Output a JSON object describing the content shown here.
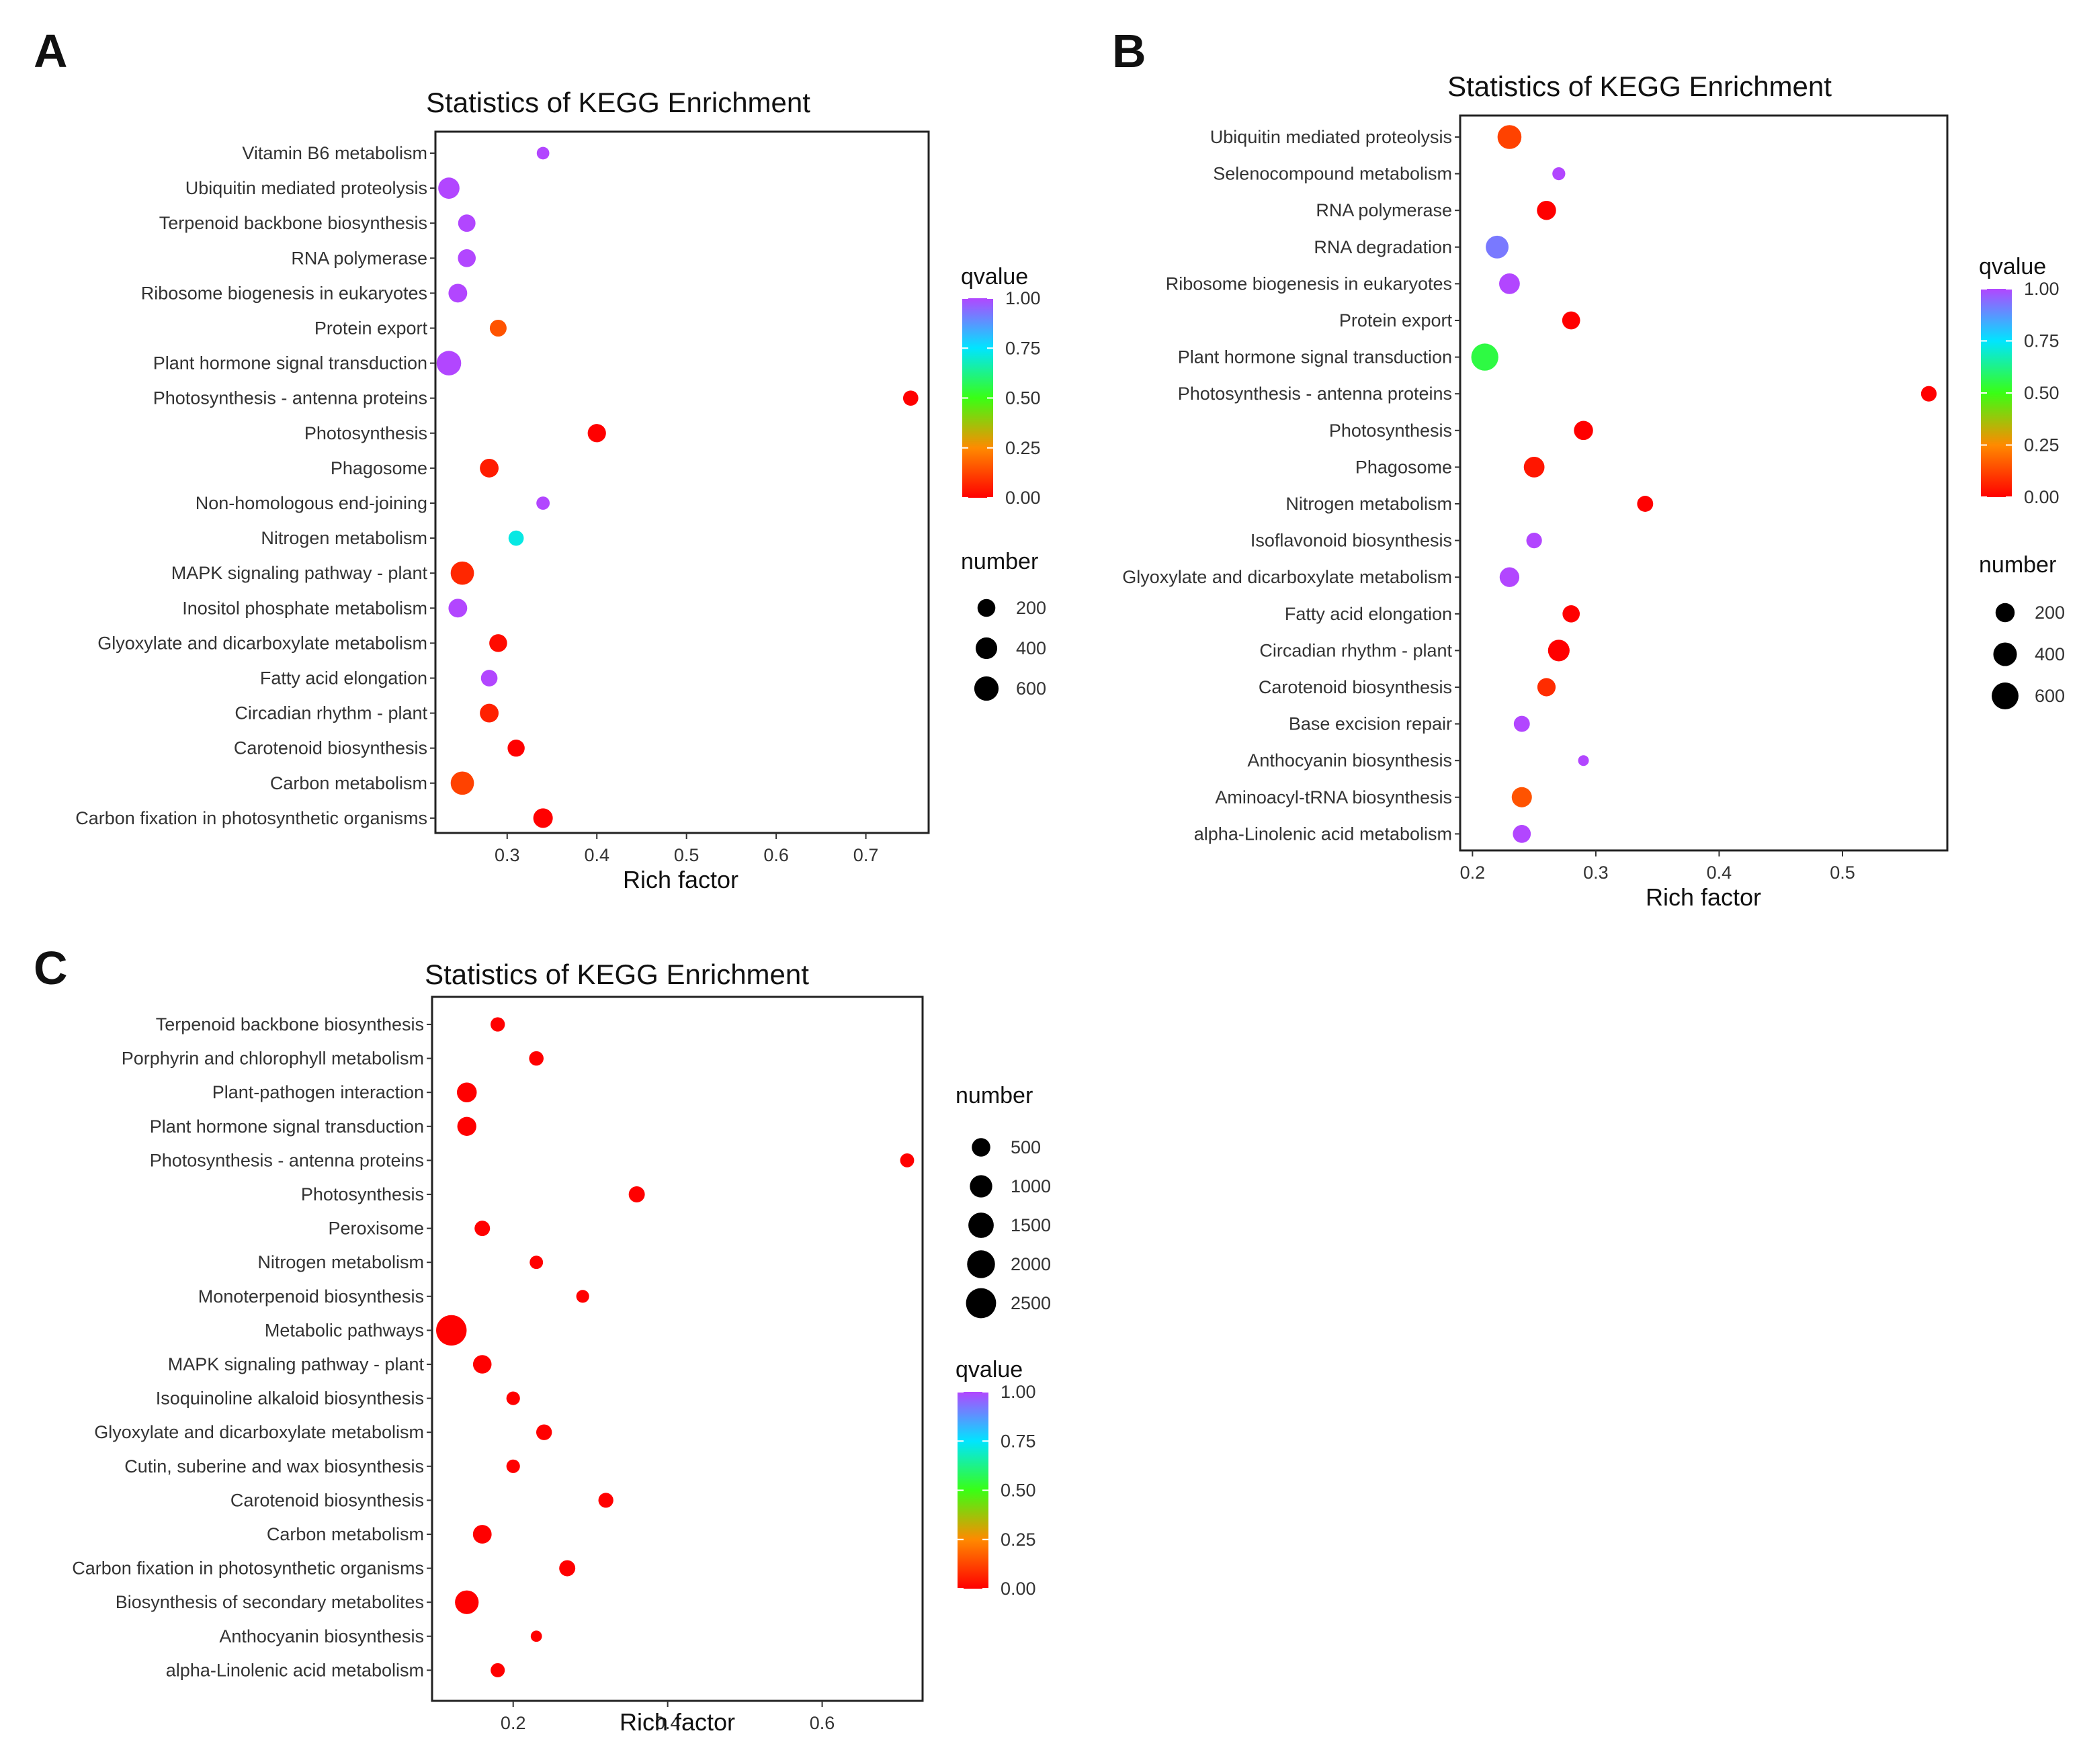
{
  "figure": {
    "panel_letters": [
      "A",
      "B",
      "C"
    ]
  },
  "chart_data": [
    {
      "type": "scatter",
      "panel": "A",
      "title": "Statistics of KEGG Enrichment",
      "xlabel": "Rich factor",
      "ylabel": "",
      "xlim": [
        0.22,
        0.77
      ],
      "xticks": [
        0.3,
        0.4,
        0.5,
        0.6,
        0.7
      ],
      "grid": false,
      "legend_placement": "right",
      "size_legend": {
        "title": "number",
        "values": [
          200,
          400,
          600
        ],
        "labels": [
          "200",
          "400",
          "600"
        ]
      },
      "color_legend": {
        "title": "qvalue",
        "range": [
          0,
          1
        ],
        "labels": [
          "1.00",
          "0.75",
          "0.50",
          "0.25",
          "0.00"
        ]
      },
      "size_scale": {
        "min": 50,
        "max": 700
      },
      "points": [
        {
          "pathway": "Vitamin B6 metabolism",
          "rich_factor": 0.34,
          "number": 60,
          "qvalue": 1.0
        },
        {
          "pathway": "Ubiquitin mediated proteolysis",
          "rich_factor": 0.235,
          "number": 380,
          "qvalue": 1.0
        },
        {
          "pathway": "Terpenoid backbone biosynthesis",
          "rich_factor": 0.255,
          "number": 180,
          "qvalue": 1.0
        },
        {
          "pathway": "RNA polymerase",
          "rich_factor": 0.255,
          "number": 200,
          "qvalue": 1.0
        },
        {
          "pathway": "Ribosome biogenesis in eukaryotes",
          "rich_factor": 0.245,
          "number": 240,
          "qvalue": 1.0
        },
        {
          "pathway": "Protein export",
          "rich_factor": 0.29,
          "number": 160,
          "qvalue": 0.15
        },
        {
          "pathway": "Plant hormone signal transduction",
          "rich_factor": 0.235,
          "number": 620,
          "qvalue": 1.0
        },
        {
          "pathway": "Photosynthesis - antenna proteins",
          "rich_factor": 0.75,
          "number": 110,
          "qvalue": 0.0
        },
        {
          "pathway": "Photosynthesis",
          "rich_factor": 0.4,
          "number": 220,
          "qvalue": 0.0
        },
        {
          "pathway": "Phagosome",
          "rich_factor": 0.28,
          "number": 240,
          "qvalue": 0.05
        },
        {
          "pathway": "Non-homologous end-joining",
          "rich_factor": 0.34,
          "number": 70,
          "qvalue": 1.0
        },
        {
          "pathway": "Nitrogen metabolism",
          "rich_factor": 0.31,
          "number": 110,
          "qvalue": 0.72
        },
        {
          "pathway": "MAPK signaling pathway - plant",
          "rich_factor": 0.25,
          "number": 520,
          "qvalue": 0.07
        },
        {
          "pathway": "Inositol phosphate metabolism",
          "rich_factor": 0.245,
          "number": 240,
          "qvalue": 1.0
        },
        {
          "pathway": "Glyoxylate and dicarboxylate metabolism",
          "rich_factor": 0.29,
          "number": 200,
          "qvalue": 0.02
        },
        {
          "pathway": "Fatty acid elongation",
          "rich_factor": 0.28,
          "number": 150,
          "qvalue": 1.0
        },
        {
          "pathway": "Circadian rhythm - plant",
          "rich_factor": 0.28,
          "number": 240,
          "qvalue": 0.06
        },
        {
          "pathway": "Carotenoid biosynthesis",
          "rich_factor": 0.31,
          "number": 170,
          "qvalue": 0.0
        },
        {
          "pathway": "Carbon metabolism",
          "rich_factor": 0.25,
          "number": 520,
          "qvalue": 0.12
        },
        {
          "pathway": "Carbon fixation in photosynthetic organisms",
          "rich_factor": 0.34,
          "number": 280,
          "qvalue": 0.0
        }
      ]
    },
    {
      "type": "scatter",
      "panel": "B",
      "title": "Statistics of KEGG Enrichment",
      "xlabel": "Rich factor",
      "ylabel": "",
      "xlim": [
        0.19,
        0.585
      ],
      "xticks": [
        0.2,
        0.3,
        0.4,
        0.5
      ],
      "grid": false,
      "legend_placement": "right",
      "size_legend": {
        "title": "number",
        "values": [
          200,
          400,
          600
        ],
        "labels": [
          "200",
          "400",
          "600"
        ]
      },
      "color_legend": {
        "title": "qvalue",
        "range": [
          0,
          1
        ],
        "labels": [
          "1.00",
          "0.75",
          "0.50",
          "0.25",
          "0.00"
        ]
      },
      "size_scale": {
        "min": 50,
        "max": 700
      },
      "points": [
        {
          "pathway": "Ubiquitin mediated proteolysis",
          "rich_factor": 0.23,
          "number": 420,
          "qvalue": 0.12
        },
        {
          "pathway": "Selenocompound metabolism",
          "rich_factor": 0.27,
          "number": 60,
          "qvalue": 1.0
        },
        {
          "pathway": "RNA polymerase",
          "rich_factor": 0.26,
          "number": 200,
          "qvalue": 0.0
        },
        {
          "pathway": "RNA degradation",
          "rich_factor": 0.22,
          "number": 360,
          "qvalue": 0.92
        },
        {
          "pathway": "Ribosome biogenesis in eukaryotes",
          "rich_factor": 0.23,
          "number": 260,
          "qvalue": 1.0
        },
        {
          "pathway": "Protein export",
          "rich_factor": 0.28,
          "number": 160,
          "qvalue": 0.0
        },
        {
          "pathway": "Plant hormone signal transduction",
          "rich_factor": 0.21,
          "number": 620,
          "qvalue": 0.55
        },
        {
          "pathway": "Photosynthesis - antenna proteins",
          "rich_factor": 0.57,
          "number": 100,
          "qvalue": 0.0
        },
        {
          "pathway": "Photosynthesis",
          "rich_factor": 0.29,
          "number": 200,
          "qvalue": 0.0
        },
        {
          "pathway": "Phagosome",
          "rich_factor": 0.25,
          "number": 260,
          "qvalue": 0.04
        },
        {
          "pathway": "Nitrogen metabolism",
          "rich_factor": 0.34,
          "number": 110,
          "qvalue": 0.0
        },
        {
          "pathway": "Isoflavonoid biosynthesis",
          "rich_factor": 0.25,
          "number": 100,
          "qvalue": 1.0
        },
        {
          "pathway": "Glyoxylate and dicarboxylate metabolism",
          "rich_factor": 0.23,
          "number": 220,
          "qvalue": 1.0
        },
        {
          "pathway": "Fatty acid elongation",
          "rich_factor": 0.28,
          "number": 140,
          "qvalue": 0.0
        },
        {
          "pathway": "Circadian rhythm - plant",
          "rich_factor": 0.27,
          "number": 300,
          "qvalue": 0.0
        },
        {
          "pathway": "Carotenoid biosynthesis",
          "rich_factor": 0.26,
          "number": 170,
          "qvalue": 0.08
        },
        {
          "pathway": "Base excision repair",
          "rich_factor": 0.24,
          "number": 110,
          "qvalue": 1.0
        },
        {
          "pathway": "Anthocyanin biosynthesis",
          "rich_factor": 0.29,
          "number": 50,
          "qvalue": 1.0
        },
        {
          "pathway": "Aminoacyl-tRNA biosynthesis",
          "rich_factor": 0.24,
          "number": 240,
          "qvalue": 0.15
        },
        {
          "pathway": "alpha-Linolenic acid metabolism",
          "rich_factor": 0.24,
          "number": 160,
          "qvalue": 1.0
        }
      ]
    },
    {
      "type": "scatter",
      "panel": "C",
      "title": "Statistics of KEGG Enrichment",
      "xlabel": "Rich factor",
      "ylabel": "",
      "xlim": [
        0.095,
        0.73
      ],
      "xticks": [
        0.2,
        0.4,
        0.6
      ],
      "grid": false,
      "legend_placement": "right",
      "size_legend": {
        "title": "number",
        "values": [
          500,
          1000,
          1500,
          2000,
          2500
        ],
        "labels": [
          "500",
          "1000",
          "1500",
          "2000",
          "2500"
        ]
      },
      "color_legend": {
        "title": "qvalue",
        "range": [
          0,
          1
        ],
        "labels": [
          "1.00",
          "0.75",
          "0.50",
          "0.25",
          "0.00"
        ]
      },
      "size_scale": {
        "min": 20,
        "max": 2700
      },
      "points": [
        {
          "pathway": "Terpenoid backbone biosynthesis",
          "rich_factor": 0.18,
          "number": 160,
          "qvalue": 0.0
        },
        {
          "pathway": "Porphyrin and chlorophyll metabolism",
          "rich_factor": 0.23,
          "number": 170,
          "qvalue": 0.0
        },
        {
          "pathway": "Plant-pathogen interaction",
          "rich_factor": 0.14,
          "number": 650,
          "qvalue": 0.0
        },
        {
          "pathway": "Plant hormone signal transduction",
          "rich_factor": 0.14,
          "number": 560,
          "qvalue": 0.0
        },
        {
          "pathway": "Photosynthesis - antenna proteins",
          "rich_factor": 0.71,
          "number": 140,
          "qvalue": 0.0
        },
        {
          "pathway": "Photosynthesis",
          "rich_factor": 0.36,
          "number": 280,
          "qvalue": 0.0
        },
        {
          "pathway": "Peroxisome",
          "rich_factor": 0.16,
          "number": 230,
          "qvalue": 0.0
        },
        {
          "pathway": "Nitrogen metabolism",
          "rich_factor": 0.23,
          "number": 110,
          "qvalue": 0.0
        },
        {
          "pathway": "Monoterpenoid biosynthesis",
          "rich_factor": 0.29,
          "number": 90,
          "qvalue": 0.0
        },
        {
          "pathway": "Metabolic pathways",
          "rich_factor": 0.12,
          "number": 2600,
          "qvalue": 0.0
        },
        {
          "pathway": "MAPK signaling pathway - plant",
          "rich_factor": 0.16,
          "number": 500,
          "qvalue": 0.0
        },
        {
          "pathway": "Isoquinoline alkaloid biosynthesis",
          "rich_factor": 0.2,
          "number": 120,
          "qvalue": 0.0
        },
        {
          "pathway": "Glyoxylate and dicarboxylate metabolism",
          "rich_factor": 0.24,
          "number": 250,
          "qvalue": 0.0
        },
        {
          "pathway": "Cutin, suberine and wax biosynthesis",
          "rich_factor": 0.2,
          "number": 120,
          "qvalue": 0.0
        },
        {
          "pathway": "Carotenoid biosynthesis",
          "rich_factor": 0.32,
          "number": 200,
          "qvalue": 0.0
        },
        {
          "pathway": "Carbon metabolism",
          "rich_factor": 0.16,
          "number": 520,
          "qvalue": 0.0
        },
        {
          "pathway": "Carbon fixation in photosynthetic organisms",
          "rich_factor": 0.27,
          "number": 280,
          "qvalue": 0.0
        },
        {
          "pathway": "Biosynthesis of secondary metabolites",
          "rich_factor": 0.14,
          "number": 1200,
          "qvalue": 0.0
        },
        {
          "pathway": "Anthocyanin biosynthesis",
          "rich_factor": 0.23,
          "number": 40,
          "qvalue": 0.0
        },
        {
          "pathway": "alpha-Linolenic acid metabolism",
          "rich_factor": 0.18,
          "number": 150,
          "qvalue": 0.0
        }
      ]
    }
  ]
}
